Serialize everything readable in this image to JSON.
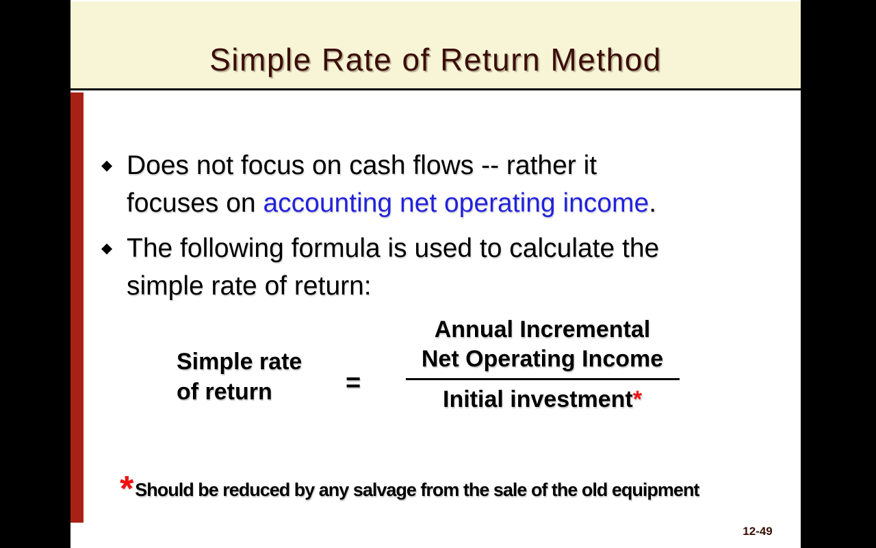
{
  "slide": {
    "title": "Simple Rate of Return Method",
    "bullet_glyph": "◆",
    "bullet1": {
      "line1": "Does not focus on cash flows -- rather it",
      "line2_pre": "focuses on ",
      "line2_highlight": "accounting net operating income",
      "line2_end": "."
    },
    "bullet2": {
      "line1": "The following formula is used to calculate the",
      "line2": "simple rate of return:"
    },
    "formula": {
      "lhs_line1": "Simple rate",
      "lhs_line2": "of return",
      "equals_sign": "=",
      "numerator_line1": "Annual Incremental",
      "numerator_line2": "Net Operating Income",
      "denominator": "Initial investment",
      "denominator_marker": "*"
    },
    "footnote": {
      "marker": "*",
      "text": "Should be reduced by any salvage from the sale of the old equipment"
    },
    "page_number": "12-49",
    "colors": {
      "header_bg": "#F7F5D6",
      "title": "#3B0D08",
      "accent_bar": "#A92114",
      "highlight_blue": "#2222DD",
      "asterisk_red": "#EE1111",
      "page_number": "#3A1008"
    }
  }
}
